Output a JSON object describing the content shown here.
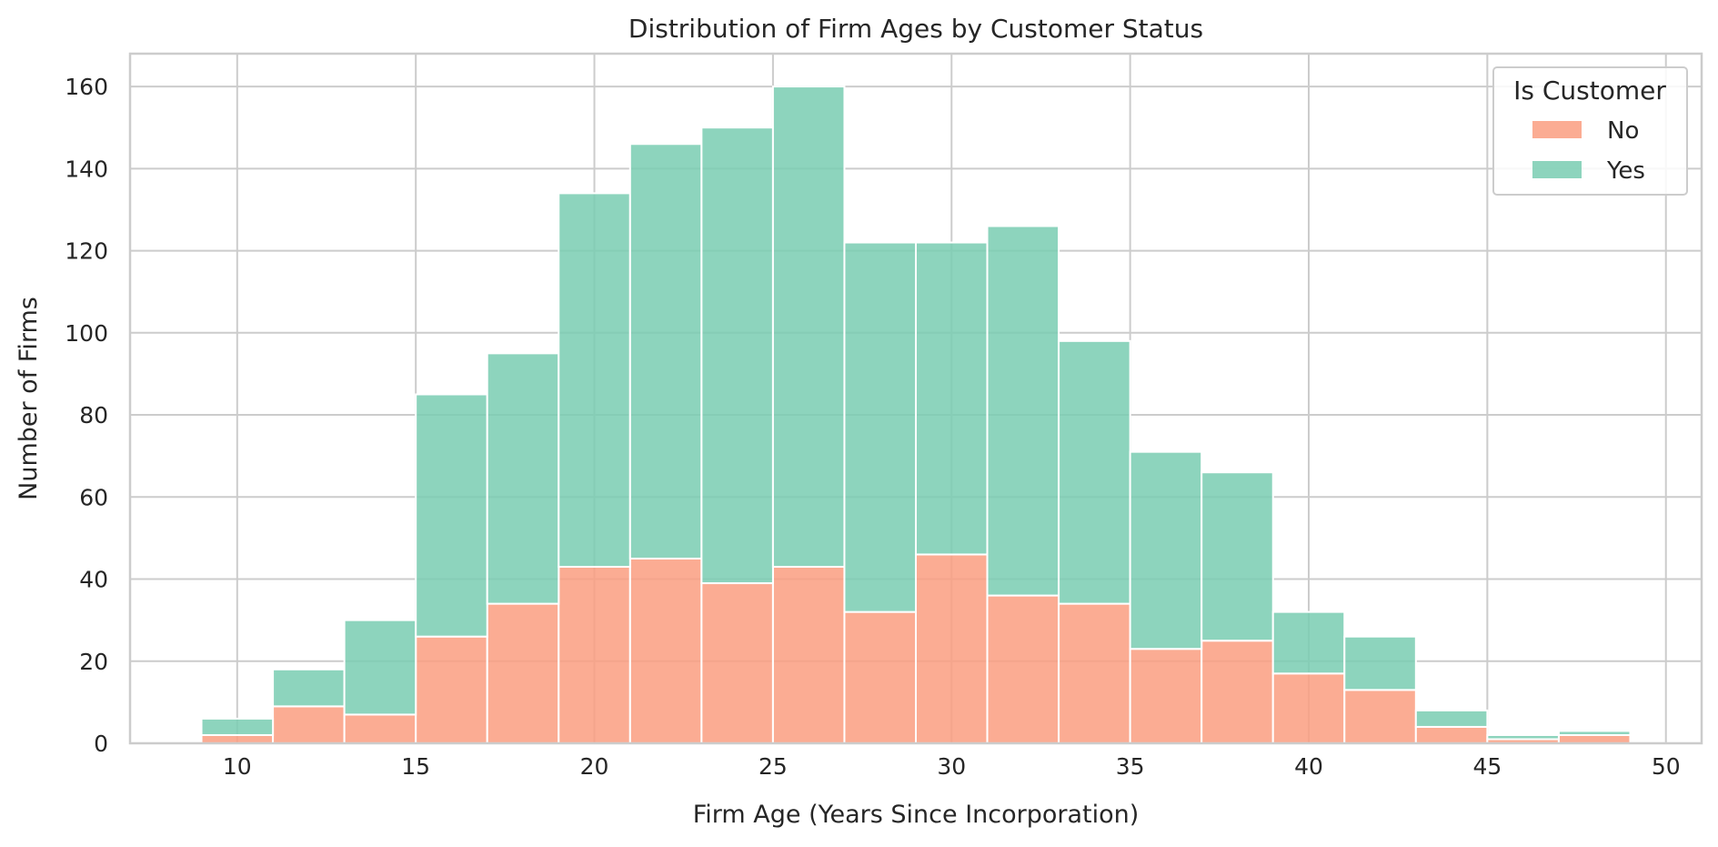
{
  "chart_data": {
    "type": "bar",
    "title": "Distribution of Firm Ages by Customer Status",
    "xlabel": "Firm Age (Years Since Incorporation)",
    "ylabel": "Number of Firms",
    "xlim": [
      7,
      51
    ],
    "ylim": [
      0,
      168
    ],
    "xticks": [
      10,
      15,
      20,
      25,
      30,
      35,
      40,
      45,
      50
    ],
    "yticks": [
      0,
      20,
      40,
      60,
      80,
      100,
      120,
      140,
      160
    ],
    "grid": true,
    "stacked": true,
    "bin_width": 2,
    "bin_starts": [
      9,
      11,
      13,
      15,
      17,
      19,
      21,
      23,
      25,
      27,
      29,
      31,
      33,
      35,
      37,
      39,
      41,
      43,
      45,
      47
    ],
    "legend": {
      "title": "Is Customer",
      "position": "top-right"
    },
    "series": [
      {
        "name": "No",
        "color": "#fa9e80",
        "values": [
          2,
          9,
          7,
          26,
          34,
          43,
          45,
          39,
          43,
          32,
          46,
          36,
          34,
          23,
          25,
          17,
          13,
          4,
          1,
          2
        ]
      },
      {
        "name": "Yes",
        "color": "#79cdb2",
        "values": [
          4,
          9,
          23,
          59,
          61,
          91,
          101,
          111,
          117,
          90,
          76,
          90,
          64,
          48,
          41,
          15,
          13,
          4,
          1,
          1
        ]
      }
    ]
  }
}
